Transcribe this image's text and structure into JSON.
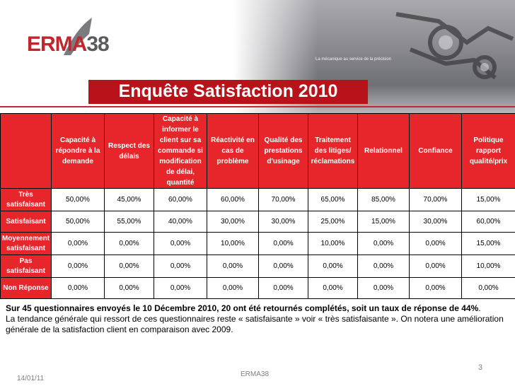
{
  "header": {
    "logo_red": "ERMA",
    "logo_grey": "38",
    "tagline": "La mécanique au service de la précision",
    "title": "Enquête Satisfaction 2010"
  },
  "table": {
    "columns": [
      "",
      "Capacité à répondre à la demande",
      "Respect des délais",
      "Capacité à informer le client sur sa commande si modification de délai, quantité",
      "Réactivité en cas de problème",
      "Qualité des prestations d'usinage",
      "Traitement des litiges/ réclamations",
      "Relationnel",
      "Confiance",
      "Politique rapport qualité/prix"
    ],
    "rows": [
      {
        "label": "Très satisfaisant",
        "values": [
          "50,00%",
          "45,00%",
          "60,00%",
          "60,00%",
          "70,00%",
          "65,00%",
          "85,00%",
          "70,00%",
          "15,00%"
        ]
      },
      {
        "label": "Satisfaisant",
        "values": [
          "50,00%",
          "55,00%",
          "40,00%",
          "30,00%",
          "30,00%",
          "25,00%",
          "15,00%",
          "30,00%",
          "60,00%"
        ]
      },
      {
        "label": "Moyennement satisfaisant",
        "values": [
          "0,00%",
          "0,00%",
          "0,00%",
          "10,00%",
          "0,00%",
          "10,00%",
          "0,00%",
          "0,00%",
          "15,00%"
        ]
      },
      {
        "label": "Pas satisfaisant",
        "values": [
          "0,00%",
          "0,00%",
          "0,00%",
          "0,00%",
          "0,00%",
          "0,00%",
          "0,00%",
          "0,00%",
          "10,00%"
        ]
      },
      {
        "label": "Non Réponse",
        "values": [
          "0,00%",
          "0,00%",
          "0,00%",
          "0,00%",
          "0,00%",
          "0,00%",
          "0,00%",
          "0,00%",
          "0,00%"
        ]
      }
    ]
  },
  "summary": {
    "bold": "Sur 45 questionnaires envoyés le 10 Décembre 2010, 20 ont été retournés complétés, soit un taux de réponse de 44%",
    "period": ".",
    "rest": "La tendance générale qui ressort de ces questionnaires reste « satisfaisante » voir « très satisfaisante ». On notera une amélioration  générale de la satisfaction client en comparaison avec 2009."
  },
  "footer": {
    "page": "3",
    "date": "14/01/11",
    "center": "ERMA38"
  },
  "colors": {
    "accent_red": "#e7262b",
    "title_red": "#b8121a"
  }
}
